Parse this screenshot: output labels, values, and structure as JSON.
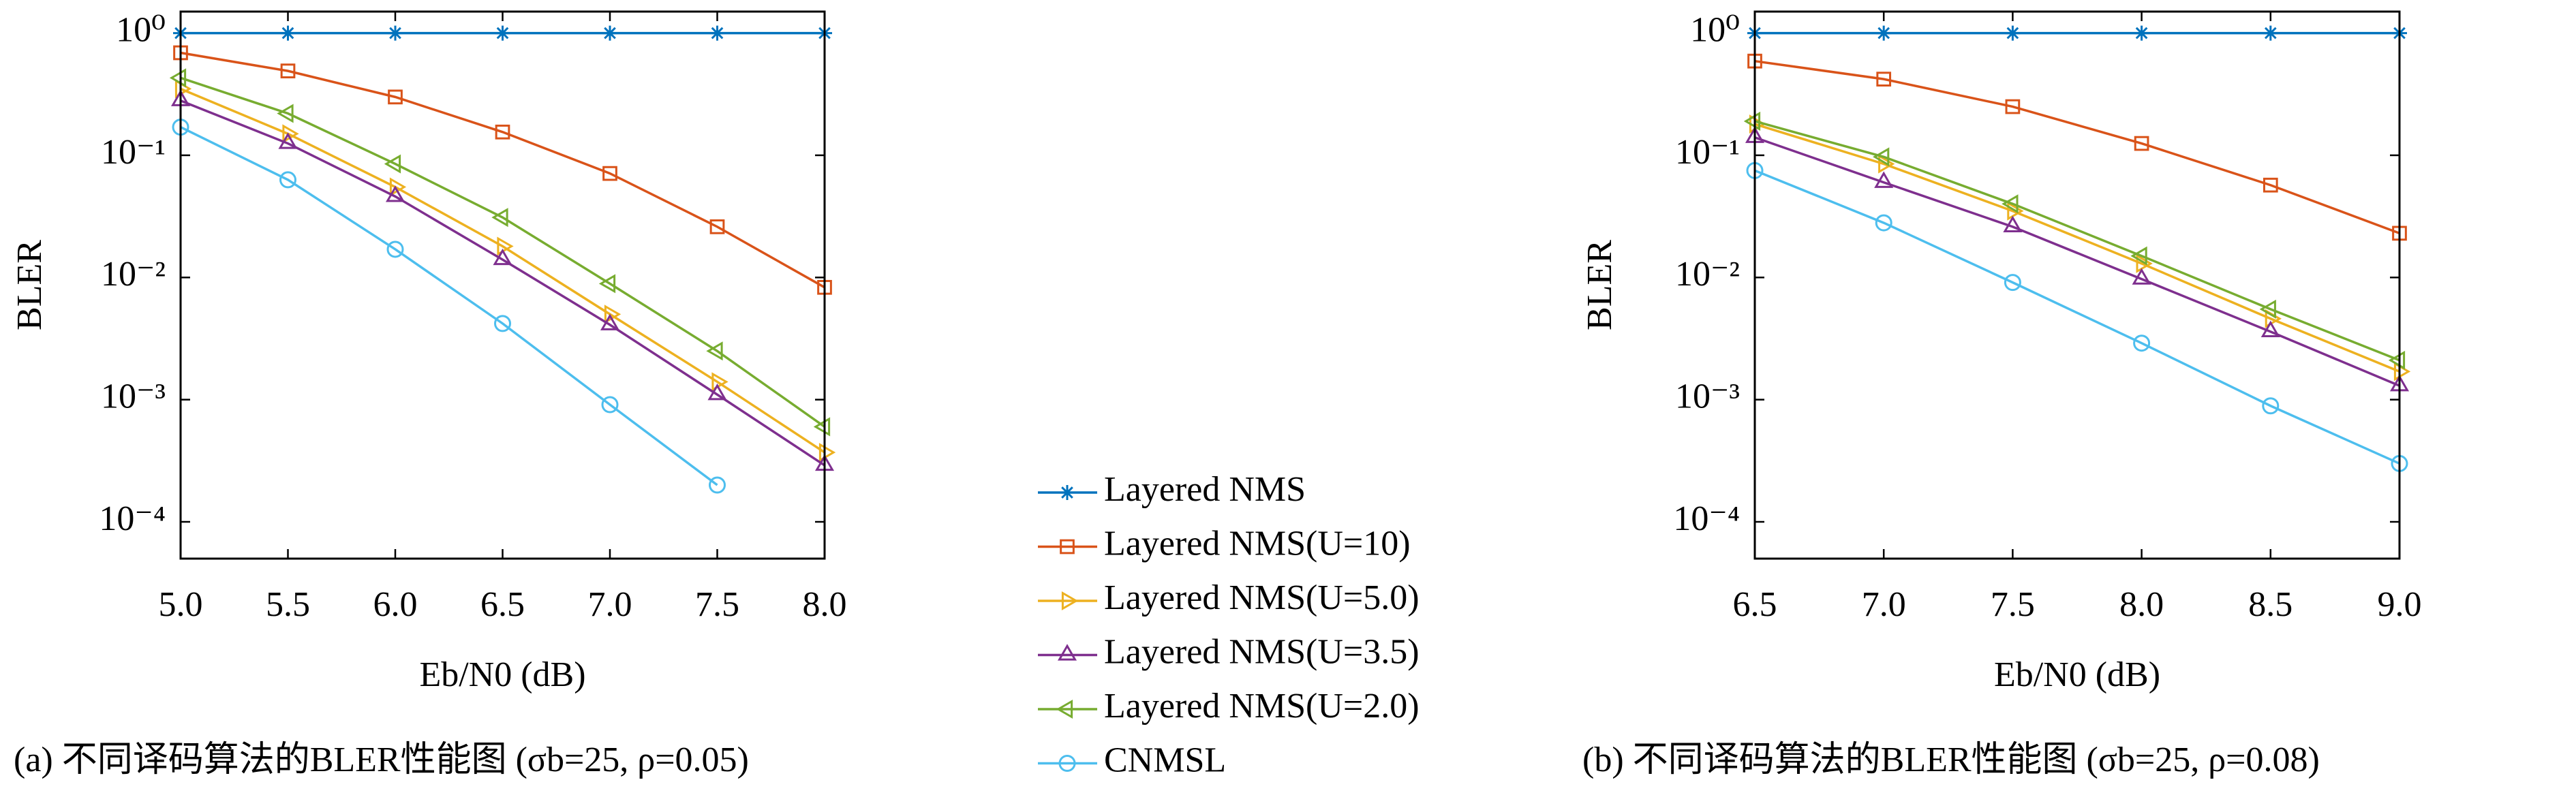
{
  "chart_data": [
    {
      "type": "line",
      "yscale": "log",
      "xlabel": "Eb/N0 (dB)",
      "ylabel": "BLER",
      "caption": "(a) 不同译码算法的BLER性能图 (σb=25, ρ=0.05)",
      "x": [
        5.0,
        5.5,
        6.0,
        6.5,
        7.0,
        7.5,
        8.0
      ],
      "xlim": [
        5.0,
        8.0
      ],
      "xticks": [
        {
          "value": 5.0,
          "label": "5.0"
        },
        5.5,
        {
          "value": 6.0,
          "label": "6.0"
        },
        6.5,
        {
          "value": 7.0,
          "label": "7.0"
        },
        7.5,
        {
          "value": 8.0,
          "label": "8.0"
        }
      ],
      "ylim": [
        5e-05,
        1.5
      ],
      "yticks": [
        {
          "value": 1,
          "label": "10⁰"
        },
        {
          "value": 0.1,
          "label": "10⁻¹"
        },
        {
          "value": 0.01,
          "label": "10⁻²"
        },
        {
          "value": 0.001,
          "label": "10⁻³"
        },
        {
          "value": 0.0001,
          "label": "10⁻⁴"
        }
      ],
      "series": [
        {
          "name": "Layered NMS",
          "color": "#0072BD",
          "marker": "star",
          "values": [
            1.0,
            1.0,
            1.0,
            1.0,
            1.0,
            1.0,
            1.0
          ]
        },
        {
          "name": "Layered NMS(U=10)",
          "color": "#D95319",
          "marker": "square",
          "values": [
            0.69,
            0.49,
            0.3,
            0.155,
            0.071,
            0.026,
            0.0083
          ]
        },
        {
          "name": "Layered NMS(U=5.0)",
          "color": "#EDB120",
          "marker": "triangle-right",
          "values": [
            0.35,
            0.15,
            0.055,
            0.018,
            0.005,
            0.0014,
            0.00037
          ]
        },
        {
          "name": "Layered NMS(U=3.5)",
          "color": "#7E2F8E",
          "marker": "triangle-up",
          "values": [
            0.28,
            0.125,
            0.046,
            0.014,
            0.0041,
            0.0011,
            0.00029
          ]
        },
        {
          "name": "Layered NMS(U=2.0)",
          "color": "#77AC30",
          "marker": "triangle-left",
          "values": [
            0.43,
            0.22,
            0.085,
            0.031,
            0.0089,
            0.0025,
            0.0006
          ]
        },
        {
          "name": "CNMSL",
          "color": "#4DBEEE",
          "marker": "circle",
          "values": [
            0.17,
            0.063,
            0.017,
            0.0042,
            0.00091,
            0.0002,
            null
          ]
        }
      ]
    },
    {
      "type": "line",
      "yscale": "log",
      "xlabel": "Eb/N0 (dB)",
      "ylabel": "BLER",
      "caption": "(b) 不同译码算法的BLER性能图 (σb=25, ρ=0.08)",
      "x": [
        6.5,
        7.0,
        7.5,
        8.0,
        8.5,
        9.0
      ],
      "xlim": [
        6.5,
        9.0
      ],
      "xticks": [
        6.5,
        {
          "value": 7.0,
          "label": "7.0"
        },
        7.5,
        {
          "value": 8.0,
          "label": "8.0"
        },
        8.5,
        {
          "value": 9.0,
          "label": "9.0"
        }
      ],
      "ylim": [
        5e-05,
        1.5
      ],
      "yticks": [
        {
          "value": 1,
          "label": "10⁰"
        },
        {
          "value": 0.1,
          "label": "10⁻¹"
        },
        {
          "value": 0.01,
          "label": "10⁻²"
        },
        {
          "value": 0.001,
          "label": "10⁻³"
        },
        {
          "value": 0.0001,
          "label": "10⁻⁴"
        }
      ],
      "series": [
        {
          "color": "#0072BD",
          "marker": "star",
          "values": [
            1.0,
            1.0,
            1.0,
            1.0,
            1.0,
            1.0
          ]
        },
        {
          "color": "#D95319",
          "marker": "square",
          "values": [
            0.59,
            0.42,
            0.25,
            0.125,
            0.057,
            0.023
          ]
        },
        {
          "color": "#EDB120",
          "marker": "triangle-right",
          "values": [
            0.18,
            0.085,
            0.035,
            0.013,
            0.0046,
            0.0017
          ]
        },
        {
          "color": "#7E2F8E",
          "marker": "triangle-up",
          "values": [
            0.14,
            0.06,
            0.026,
            0.0097,
            0.0036,
            0.0013
          ]
        },
        {
          "color": "#77AC30",
          "marker": "triangle-left",
          "values": [
            0.19,
            0.097,
            0.04,
            0.015,
            0.0055,
            0.0021
          ]
        },
        {
          "color": "#4DBEEE",
          "marker": "circle",
          "values": [
            0.075,
            0.028,
            0.0091,
            0.0029,
            0.00089,
            0.0003
          ]
        }
      ]
    }
  ]
}
